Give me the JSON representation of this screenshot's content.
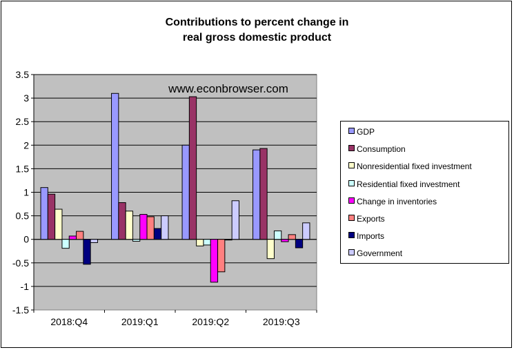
{
  "chart_data": {
    "type": "bar",
    "title": "Contributions to percent change in\nreal gross domestic product",
    "watermark": "www.econbrowser.com",
    "categories": [
      "2018:Q4",
      "2019:Q1",
      "2019:Q2",
      "2019:Q3"
    ],
    "ylim": [
      -1.5,
      3.5
    ],
    "yticks": [
      "3.5",
      "3",
      "2.5",
      "2",
      "1.5",
      "1",
      "0.5",
      "0",
      "-0.5",
      "-1",
      "-1.5"
    ],
    "grid": "horizontal",
    "legend_position": "right",
    "plot_background": "#c0c0c0",
    "series": [
      {
        "name": "GDP",
        "color": "#9999ff",
        "values": [
          1.1,
          3.1,
          2.0,
          1.9
        ]
      },
      {
        "name": "Consumption",
        "color": "#993366",
        "values": [
          0.96,
          0.78,
          3.03,
          1.93
        ]
      },
      {
        "name": "Nonresidential fixed investment",
        "color": "#ffffcc",
        "values": [
          0.64,
          0.6,
          -0.14,
          -0.41
        ]
      },
      {
        "name": "Residential fixed investment",
        "color": "#ccffff",
        "values": [
          -0.19,
          -0.04,
          -0.12,
          0.18
        ]
      },
      {
        "name": "Change in inventories",
        "color": "#ff00ff",
        "values": [
          0.07,
          0.53,
          -0.91,
          -0.05
        ]
      },
      {
        "name": "Exports",
        "color": "#ff8080",
        "values": [
          0.17,
          0.48,
          -0.69,
          0.1
        ]
      },
      {
        "name": "Imports",
        "color": "#000080",
        "values": [
          -0.53,
          0.23,
          0.0,
          -0.18
        ]
      },
      {
        "name": "Government",
        "color": "#ccccff",
        "values": [
          -0.07,
          0.5,
          0.82,
          0.35
        ]
      }
    ]
  }
}
